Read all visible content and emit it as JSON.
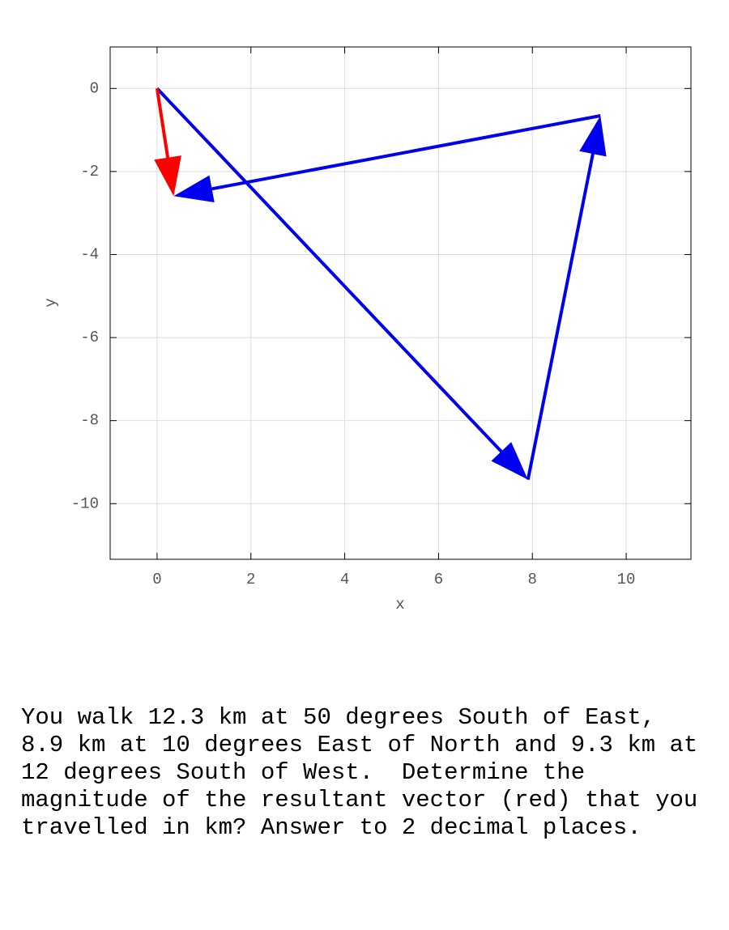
{
  "chart_data": {
    "type": "vector",
    "xlabel": "x",
    "ylabel": "y",
    "xlim": [
      -1,
      11.38
    ],
    "ylim": [
      -11.34,
      1
    ],
    "xticks": [
      0,
      2,
      4,
      6,
      8,
      10
    ],
    "yticks": [
      0,
      -2,
      -4,
      -6,
      -8,
      -10
    ],
    "grid": true,
    "vectors": [
      {
        "color": "#0000ee",
        "x0": 0,
        "y0": 0,
        "x1": 7.906,
        "y1": -9.422
      },
      {
        "color": "#0000ee",
        "x0": 7.906,
        "y0": -9.422,
        "x1": 9.451,
        "y1": -0.657
      },
      {
        "color": "#0000ee",
        "x0": 9.451,
        "y0": -0.657,
        "x1": 0.354,
        "y1": -2.591
      },
      {
        "color": "#ff0000",
        "x0": 0,
        "y0": 0,
        "x1": 0.354,
        "y1": -2.591
      }
    ]
  },
  "question": "You walk 12.3 km at 50 degrees South of East, 8.9 km at 10 degrees East of North and 9.3 km at 12 degrees South of West.  Determine the magnitude of the resultant vector (red) that you travelled in km? Answer to 2 decimal places."
}
